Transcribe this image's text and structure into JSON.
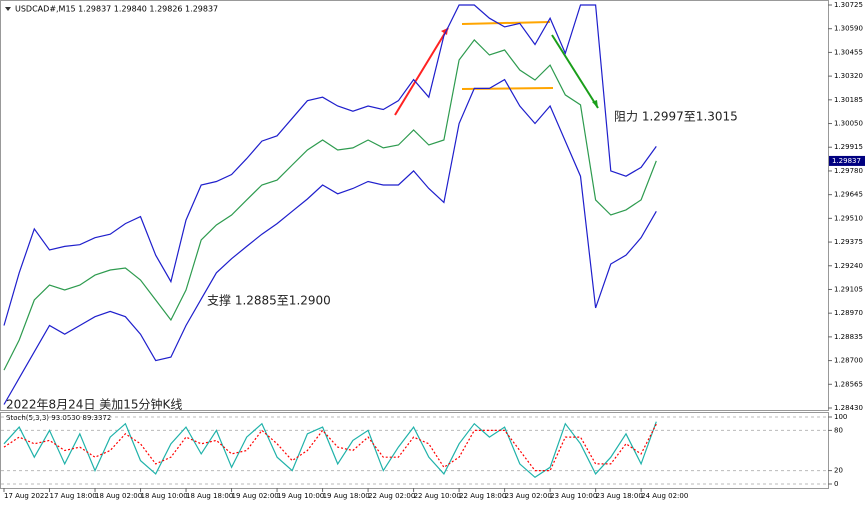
{
  "chart_data": [
    {
      "type": "line",
      "title": "USDCAD#,M15  1.29837 1.29840 1.29826 1.29837",
      "annotations": [
        "阻力 1.2997至1.3015",
        "支撑 1.2885至1.2900",
        "2022年8月24日 美加15分钟K线"
      ],
      "ylim": [
        1.2843,
        1.30725
      ],
      "yticks": [
        1.30725,
        {
          "value": 1.3059,
          "label": "1.30590"
        },
        1.30455,
        {
          "value": 1.3032,
          "label": "1.30320"
        },
        1.30185,
        {
          "value": 1.3005,
          "label": "1.30050"
        },
        1.29915,
        {
          "value": 1.2978,
          "label": "1.29780"
        },
        1.29645,
        {
          "value": 1.2951,
          "label": "1.29510"
        },
        1.29375,
        {
          "value": 1.2924,
          "label": "1.29240"
        },
        1.29105,
        {
          "value": 1.2897,
          "label": "1.28970"
        },
        1.28835,
        {
          "value": 1.287,
          "label": "1.28700"
        },
        1.28565,
        {
          "value": 1.2843,
          "label": "1.28430"
        }
      ],
      "series": [
        {
          "color": "#2e9b4f",
          "values": [
            1.28646,
            1.28817,
            1.29045,
            1.2913,
            1.29102,
            1.2913,
            1.29187,
            1.29216,
            1.29227,
            1.29159,
            1.29045,
            1.28931,
            1.29102,
            1.29387,
            1.29472,
            1.29529,
            1.29615,
            1.297,
            1.29728,
            1.29814,
            1.29899,
            1.29956,
            1.29899,
            1.29911,
            1.29956,
            1.29911,
            1.29928,
            1.30013,
            1.29928,
            1.29956,
            1.30412,
            1.30526,
            1.3044,
            1.30469,
            1.30355,
            1.30298,
            1.30383,
            1.30213,
            1.30156,
            1.29615,
            1.29529,
            1.29558,
            1.29615,
            1.29837
          ]
        },
        {
          "color": "#1f1fcc",
          "values": [
            1.289,
            1.292,
            1.2945,
            1.2933,
            1.2935,
            1.2936,
            1.294,
            1.2942,
            1.2948,
            1.2952,
            1.293,
            1.2915,
            1.295,
            1.297,
            1.2972,
            1.2976,
            1.2985,
            1.2995,
            1.2998,
            1.3008,
            1.3018,
            1.302,
            1.3015,
            1.3012,
            1.3015,
            1.3013,
            1.3018,
            1.303,
            1.302,
            1.3055,
            1.30725,
            1.30725,
            1.3065,
            1.306,
            1.3062,
            1.305,
            1.3065,
            1.3045,
            1.30725,
            1.30725,
            1.2978,
            1.2975,
            1.298,
            1.2992
          ]
        },
        {
          "color": "#1f1fcc",
          "values": [
            1.2845,
            1.286,
            1.2875,
            1.289,
            1.2885,
            1.289,
            1.2895,
            1.2898,
            1.2895,
            1.2885,
            1.287,
            1.2872,
            1.289,
            1.2905,
            1.292,
            1.2928,
            1.2935,
            1.2942,
            1.2948,
            1.2955,
            1.2962,
            1.297,
            1.2965,
            1.2968,
            1.2972,
            1.297,
            1.297,
            1.2978,
            1.2968,
            1.296,
            1.3005,
            1.3025,
            1.3025,
            1.303,
            1.3015,
            1.3005,
            1.3015,
            1.2995,
            1.2975,
            1.29,
            1.2925,
            1.293,
            1.294,
            1.2955
          ]
        }
      ]
    },
    {
      "type": "line",
      "title": "Stoch(5,3,3) 93.0530 89.3372",
      "ylim": [
        0,
        100
      ],
      "yticks": [
        0,
        20,
        80,
        100
      ],
      "categories": [
        "17 Aug 2022",
        null,
        null,
        "17 Aug 18:00",
        null,
        null,
        "18 Aug 02:00",
        null,
        null,
        "18 Aug 10:00",
        null,
        null,
        "18 Aug 18:00",
        null,
        null,
        "19 Aug 02:00",
        null,
        null,
        "19 Aug 10:00",
        null,
        null,
        "19 Aug 18:00",
        null,
        null,
        "22 Aug 02:00",
        null,
        null,
        "22 Aug 10:00",
        null,
        null,
        "22 Aug 18:00",
        null,
        null,
        "23 Aug 02:00",
        null,
        null,
        "23 Aug 10:00",
        null,
        null,
        "23 Aug 18:00",
        null,
        null,
        "24 Aug 02:00",
        null
      ],
      "series": [
        {
          "color": "#20b2aa",
          "values": [
            60,
            85,
            40,
            80,
            30,
            75,
            20,
            70,
            90,
            35,
            15,
            60,
            85,
            45,
            80,
            25,
            70,
            90,
            40,
            20,
            75,
            85,
            30,
            65,
            80,
            20,
            55,
            85,
            40,
            15,
            60,
            90,
            70,
            85,
            30,
            10,
            25,
            90,
            60,
            15,
            40,
            75,
            30,
            93.053
          ]
        },
        {
          "color": "#ff0000",
          "values": [
            55,
            70,
            60,
            65,
            50,
            55,
            40,
            50,
            75,
            60,
            30,
            40,
            70,
            60,
            65,
            45,
            50,
            80,
            60,
            35,
            50,
            80,
            55,
            50,
            70,
            40,
            40,
            70,
            60,
            25,
            40,
            80,
            80,
            80,
            50,
            20,
            20,
            70,
            70,
            30,
            30,
            60,
            45,
            89.3372
          ]
        }
      ]
    }
  ]
}
